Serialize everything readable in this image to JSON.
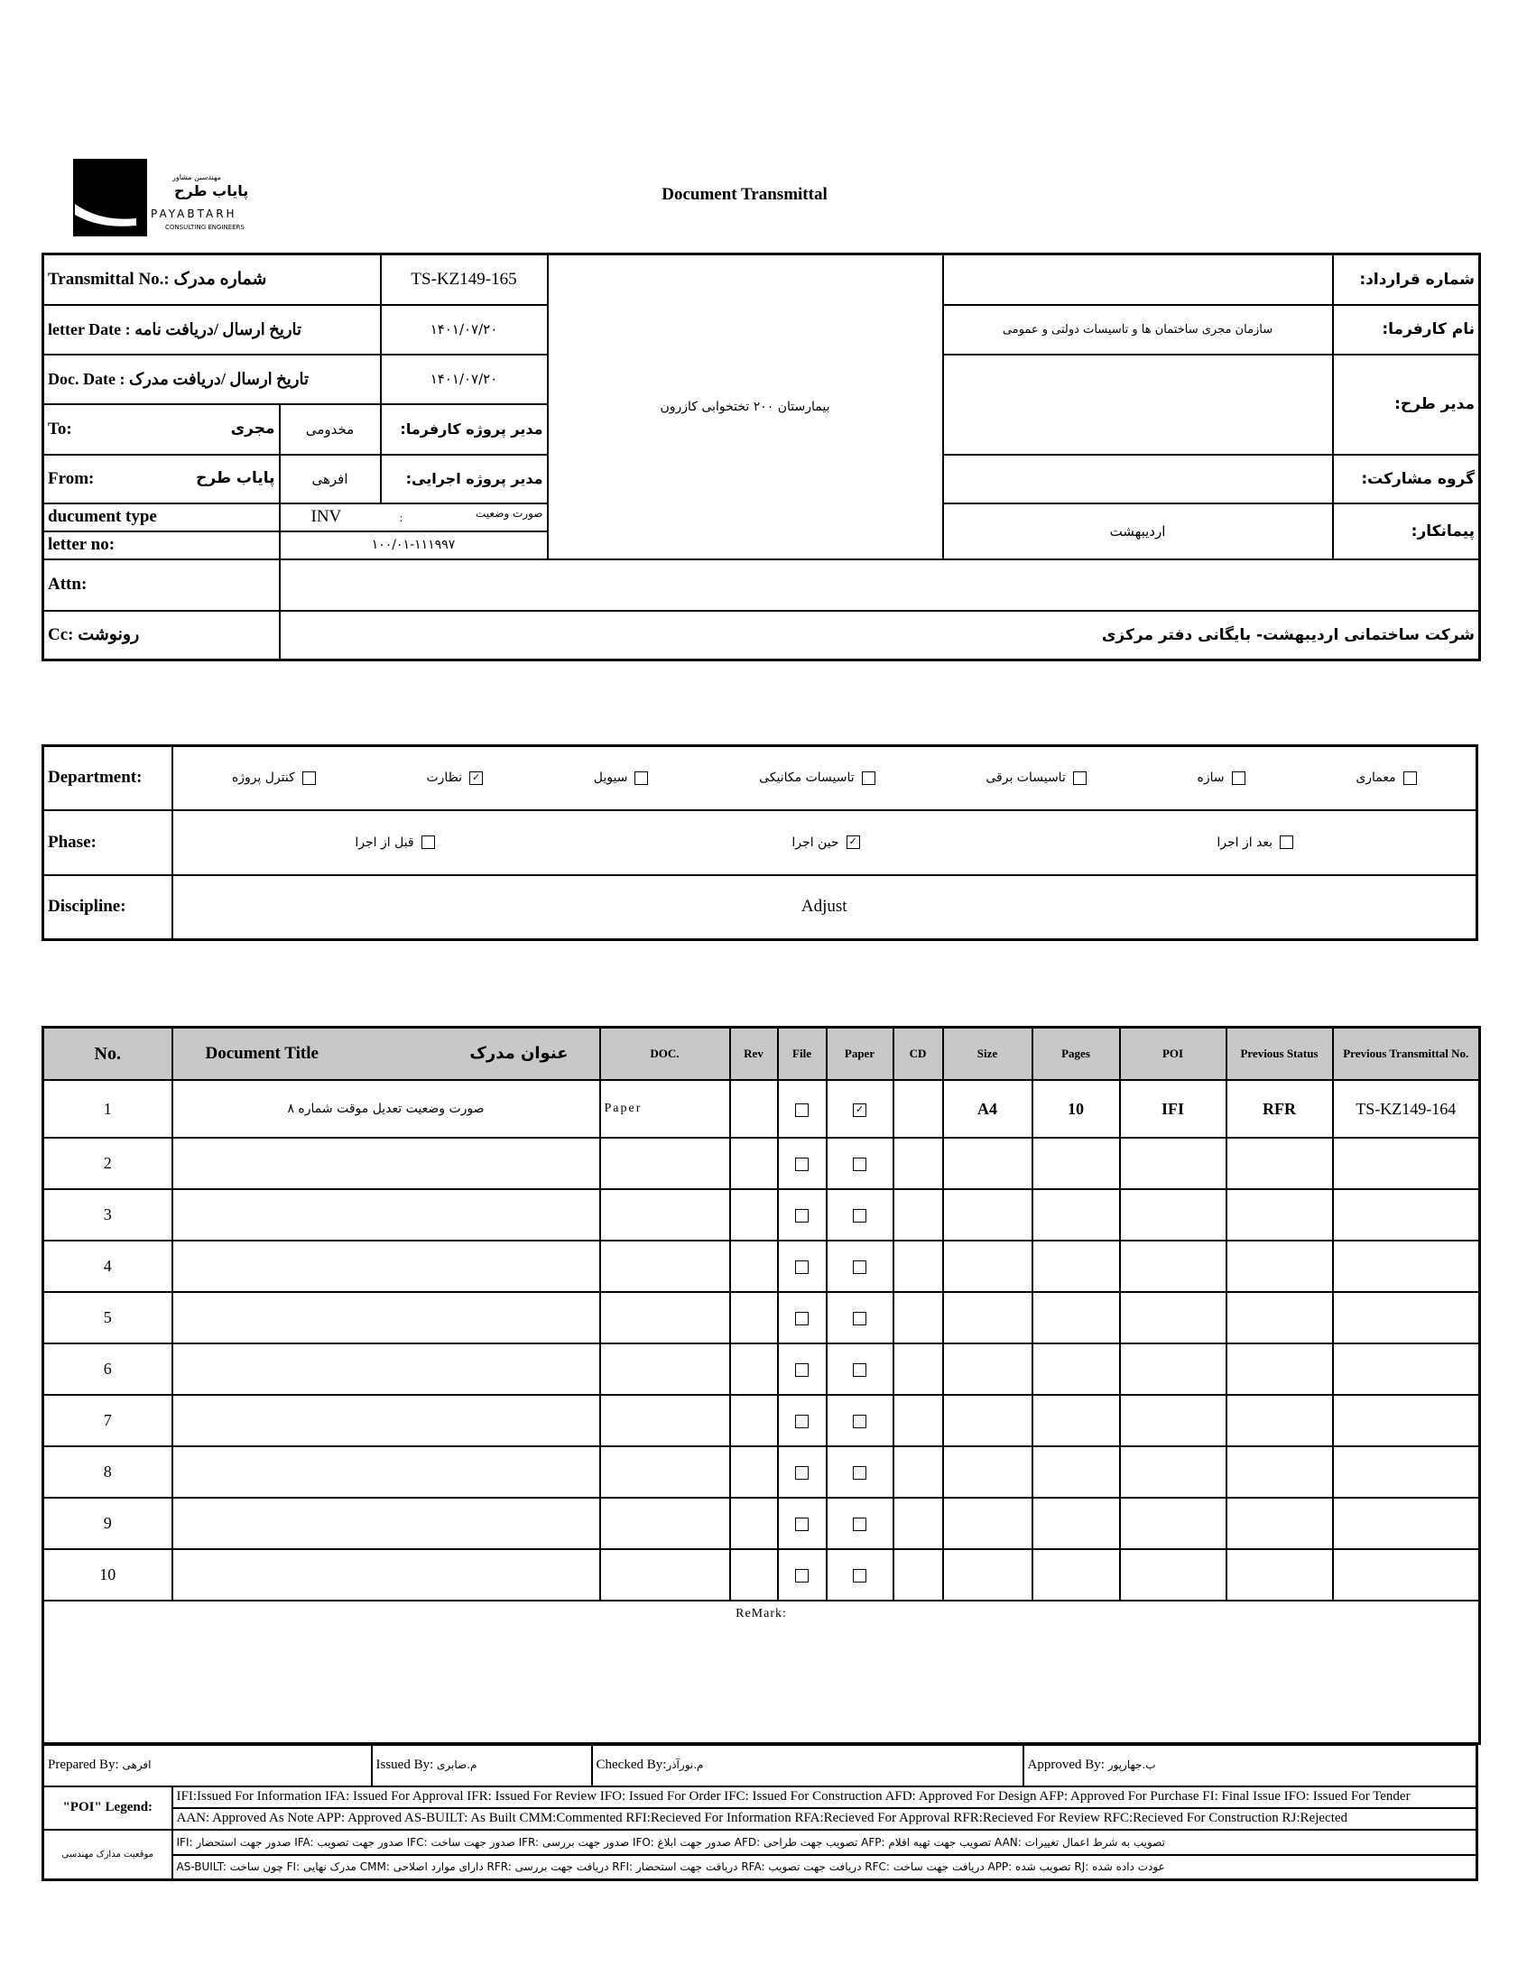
{
  "logo": {
    "company_fa": "پایاب طرح",
    "tagline_fa": "مهندسین مشاور",
    "company_en": "PAYABTARH",
    "sub_en": "CONSULTING ENGINEERS"
  },
  "title": "Document Transmittal",
  "header": {
    "transmittal_label": "Transmittal No.: شماره مدرک",
    "transmittal_value": "TS-KZ149-165",
    "letter_date_label": "letter Date  :  تاریخ ارسال /دریافت نامه",
    "letter_date_value": "۱۴۰۱/۰۷/۲۰",
    "doc_date_label": "Doc. Date :    تاریخ ارسال /دریافت مدرک",
    "doc_date_value": "۱۴۰۱/۰۷/۲۰",
    "to_label": "To:",
    "to_value": "مجری",
    "to_person": "مخدومی",
    "to_role": "مدیر پروژه کارفرما:",
    "from_label": "From:",
    "from_value": "پایاب طرح",
    "from_person": "افرهی",
    "from_role": "مدیر پروژه اجرایی:",
    "doc_type_label": "ducument type",
    "doc_type_code": "INV",
    "doc_type_sep": ":",
    "doc_type_value": "صورت وضعیت",
    "letter_no_label": "letter no:",
    "letter_no_value": "۱۰۰/۰۱-۱۱۱۹۹۷",
    "project": "بیمارستان ۲۰۰ تختخوابی کازرون",
    "contract_label": "شماره قرارداد:",
    "contract_value": "",
    "client_label": "نام کارفرما:",
    "client_value": "سازمان مجری ساختمان ها و تاسیسات دولتی و عمومی",
    "manager_label": "مدیر طرح:",
    "manager_value": "",
    "partner_label": "گروه مشارکت:",
    "partner_value": "",
    "contractor_label": "پیمانکار:",
    "contractor_value": "اردیبهشت",
    "attn_label": "Attn:",
    "attn_value": "",
    "cc_label": "Cc: رونوشت",
    "cc_value": "شرکت ساختمانی اردیبهشت- بایگانی دفتر مرکزی"
  },
  "department": {
    "label": "Department:",
    "options": [
      {
        "label": "معماری",
        "checked": false
      },
      {
        "label": "سازه",
        "checked": false
      },
      {
        "label": "تاسیسات برقی",
        "checked": false
      },
      {
        "label": "تاسیسات مکانیکی",
        "checked": false
      },
      {
        "label": "سیویل",
        "checked": false
      },
      {
        "label": "نظارت",
        "checked": true
      },
      {
        "label": "کنترل پروژه",
        "checked": false
      }
    ]
  },
  "phase": {
    "label": "Phase:",
    "options": [
      {
        "label": "بعد از اجرا",
        "checked": false
      },
      {
        "label": "حین اجرا",
        "checked": true
      },
      {
        "label": "قبل از اجرا",
        "checked": false
      }
    ]
  },
  "discipline": {
    "label": "Discipline:",
    "value": "Adjust"
  },
  "items": {
    "headers": {
      "no": "No.",
      "title_en": "Document Title",
      "title_fa": "عنوان مدرک",
      "doc": "DOC.",
      "rev": "Rev",
      "file": "File",
      "paper": "Paper",
      "cd": "CD",
      "size": "Size",
      "pages": "Pages",
      "poi": "POI",
      "prev_status": "Previous Status",
      "prev_transmittal": "Previous Transmittal No."
    },
    "rows": [
      {
        "no": "1",
        "title": "صورت وضعیت تعدیل موقت شماره ۸",
        "doc": "Paper",
        "rev": "",
        "file": false,
        "paper": true,
        "cd": "",
        "size": "A4",
        "pages": "10",
        "poi": "IFI",
        "prev_status": "RFR",
        "prev_transmittal": "TS-KZ149-164"
      },
      {
        "no": "2",
        "file": false,
        "paper": false
      },
      {
        "no": "3",
        "file": false,
        "paper": false
      },
      {
        "no": "4",
        "file": false,
        "paper": false
      },
      {
        "no": "5",
        "file": false,
        "paper": false
      },
      {
        "no": "6",
        "file": false,
        "paper": false
      },
      {
        "no": "7",
        "file": false,
        "paper": false
      },
      {
        "no": "8",
        "file": false,
        "paper": false
      },
      {
        "no": "9",
        "file": false,
        "paper": false
      },
      {
        "no": "10",
        "file": false,
        "paper": false
      }
    ]
  },
  "remark_label": "ReMark:",
  "signatures": {
    "prepared_label": "Prepared By:",
    "prepared_value": "افرهی",
    "issued_label": "Issued By:",
    "issued_value": "م.صابری",
    "checked_label": "Checked By:",
    "checked_value": "م.نورآذر",
    "approved_label": "Approved By:",
    "approved_value": "ب.جهارپور"
  },
  "poi_legend": {
    "label": "\"POI\" Legend:",
    "line1": "IFI:Issued For Information  IFA: Issued For Approval  IFR: Issued For Review   IFO: Issued For Order  IFC: Issued For Construction AFD: Approved For Design AFP: Approved For Purchase  FI: Final Issue  IFO: Issued For Tender",
    "line2": "AAN: Approved As Note  APP: Approved  AS-BUILT: As Built CMM:Commented  RFI:Recieved For Information   RFA:Recieved For Approval   RFR:Recieved For Review  RFC:Recieved For Construction  RJ:Rejected"
  },
  "status_legend": {
    "label": "موقعیت مدارک مهندسی",
    "line1": "IFI: صدور جهت استحضار   IFA: صدور جهت تصویب   IFC: صدور جهت ساخت   IFR: صدور جهت بررسی   IFO: صدور جهت ابلاغ   AFD: تصویب جهت طراحی   AFP: تصویب جهت تهیه اقلام   AAN: تصویب به شرط اعمال تغییرات",
    "line2": "AS-BUILT: چون ساخت   FI: مدرک نهایی   CMM: دارای موارد اصلاحی   RFR: دریافت جهت بررسی   RFI: دریافت جهت استحضار   RFA: دریافت جهت تصویب   RFC: دریافت جهت ساخت   APP: تصویب شده   RJ: عودت داده شده"
  }
}
